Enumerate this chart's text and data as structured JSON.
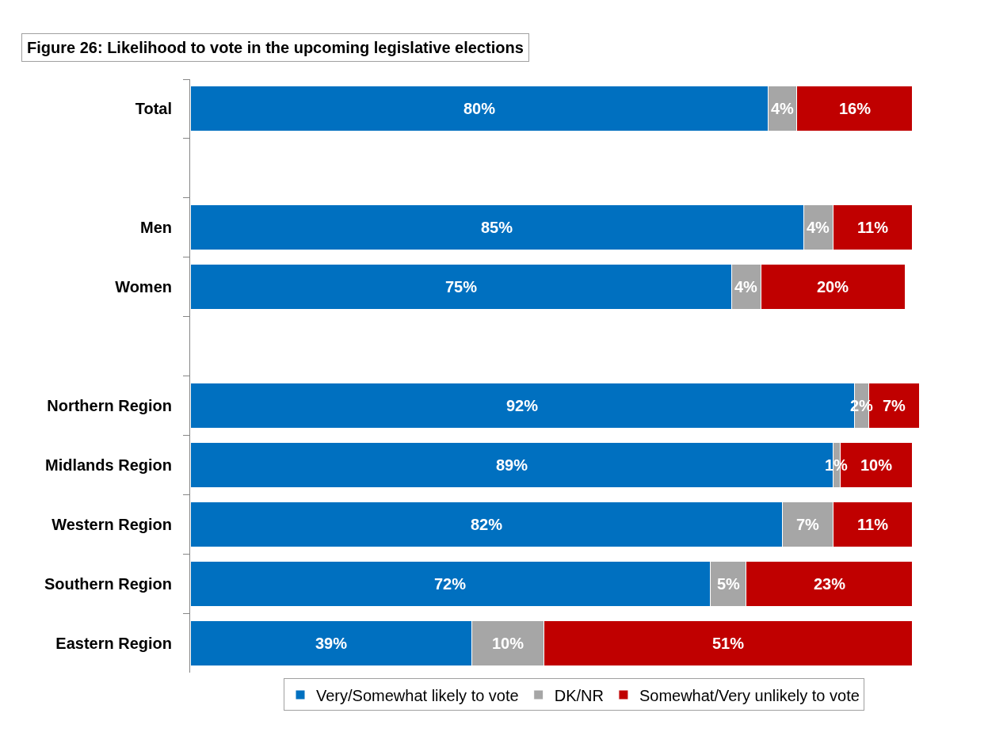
{
  "chart_data": {
    "type": "bar",
    "title": "Figure 26: Likelihood to vote in the upcoming legislative elections",
    "orientation": "horizontal",
    "stacked": true,
    "legend": "bottom",
    "categories": [
      "Total",
      null,
      "Men",
      "Women",
      null,
      "Northern Region",
      "Midlands Region",
      "Western Region",
      "Southern Region",
      "Eastern Region"
    ],
    "series": [
      {
        "name": "Very/Somewhat likely to vote",
        "color": "#0070c0",
        "values": [
          80,
          null,
          85,
          75,
          null,
          92,
          89,
          82,
          72,
          39
        ],
        "value_labels": [
          "80%",
          null,
          "85%",
          "75%",
          null,
          "92%",
          "89%",
          "82%",
          "72%",
          "39%"
        ]
      },
      {
        "name": "DK/NR",
        "color": "#a6a6a6",
        "values": [
          4,
          null,
          4,
          4,
          null,
          2,
          1,
          7,
          5,
          10
        ],
        "value_labels": [
          "4%",
          null,
          "4%",
          "4%",
          null,
          "2%",
          "1%",
          "7%",
          "5%",
          "10%"
        ]
      },
      {
        "name": "Somewhat/Very unlikely to vote",
        "color": "#c00000",
        "values": [
          16,
          null,
          11,
          20,
          null,
          7,
          10,
          11,
          23,
          51
        ],
        "value_labels": [
          "16%",
          null,
          "11%",
          "20%",
          null,
          "7%",
          "10%",
          "11%",
          "23%",
          "51%"
        ]
      }
    ]
  }
}
